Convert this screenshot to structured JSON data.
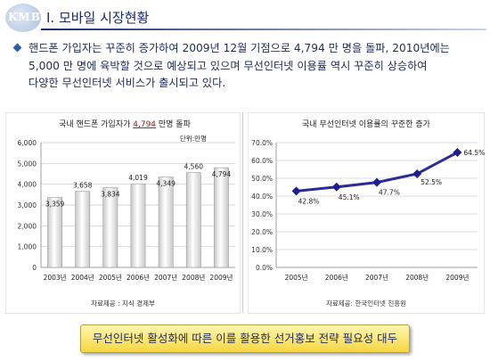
{
  "header": {
    "logo_text": "KMB",
    "title": "Ⅰ. 모바일 시장현황"
  },
  "intro": {
    "lines": [
      "핸드폰 가입자는 꾸준히 증가하여 2009년 12월 기점으로 4,794 만 명을 돌파, 2010년에는",
      "5,000 만 명에 육박할 것으로 예상되고 있으며 무선인터넷 이용률 역시 꾸준히 상승하여",
      "다양한 무선인터넷 서비스가 출시되고 있다."
    ]
  },
  "chart_data": [
    {
      "type": "bar",
      "title_parts": [
        "국내 핸드폰 가입자가 ",
        "4,794",
        " 만명 돌파"
      ],
      "unit": "단위:만명",
      "categories": [
        "2003년",
        "2004년",
        "2005년",
        "2006년",
        "2007년",
        "2008년",
        "2009년"
      ],
      "values": [
        3359,
        3658,
        3834,
        4019,
        4349,
        4560,
        4794
      ],
      "value_labels": [
        "3,359",
        "3,658",
        "3,834",
        "4,019",
        "4,349",
        "4,560",
        "4,794"
      ],
      "yticks": [
        "0",
        "1,000",
        "2,000",
        "3,000",
        "4,000",
        "5,000",
        "6,000"
      ],
      "ylim": [
        0,
        6000
      ],
      "grid": true,
      "source": "자료제공 : 지식 경제부"
    },
    {
      "type": "line",
      "title": "국내 무선인터넷 이용률의 꾸준한 증가",
      "categories": [
        "2005년",
        "2006년",
        "2007년",
        "2008년",
        "2009년"
      ],
      "values": [
        42.8,
        45.1,
        47.7,
        52.5,
        64.5
      ],
      "value_labels": [
        "42.8%",
        "45.1%",
        "47.7%",
        "52.5%",
        "64.5%"
      ],
      "yticks": [
        "0.0%",
        "10.0%",
        "20.0%",
        "30.0%",
        "40.0%",
        "50.0%",
        "60.0%",
        "70.0%"
      ],
      "ylim": [
        0,
        70
      ],
      "grid": true,
      "source": "자료제공: 한국인터넷 진흥원"
    }
  ],
  "footer": {
    "conclusion": "무선인터넷 활성화에 따른 이를 활용한 선거홍보 전략 필요성 대두"
  },
  "colors": {
    "bar_fill_top": "#ffffff",
    "bar_fill_bottom": "#c8c8c8",
    "line": "#2b2b9a",
    "marker": "#1e1e8c",
    "heading": "#1a2a6c"
  }
}
